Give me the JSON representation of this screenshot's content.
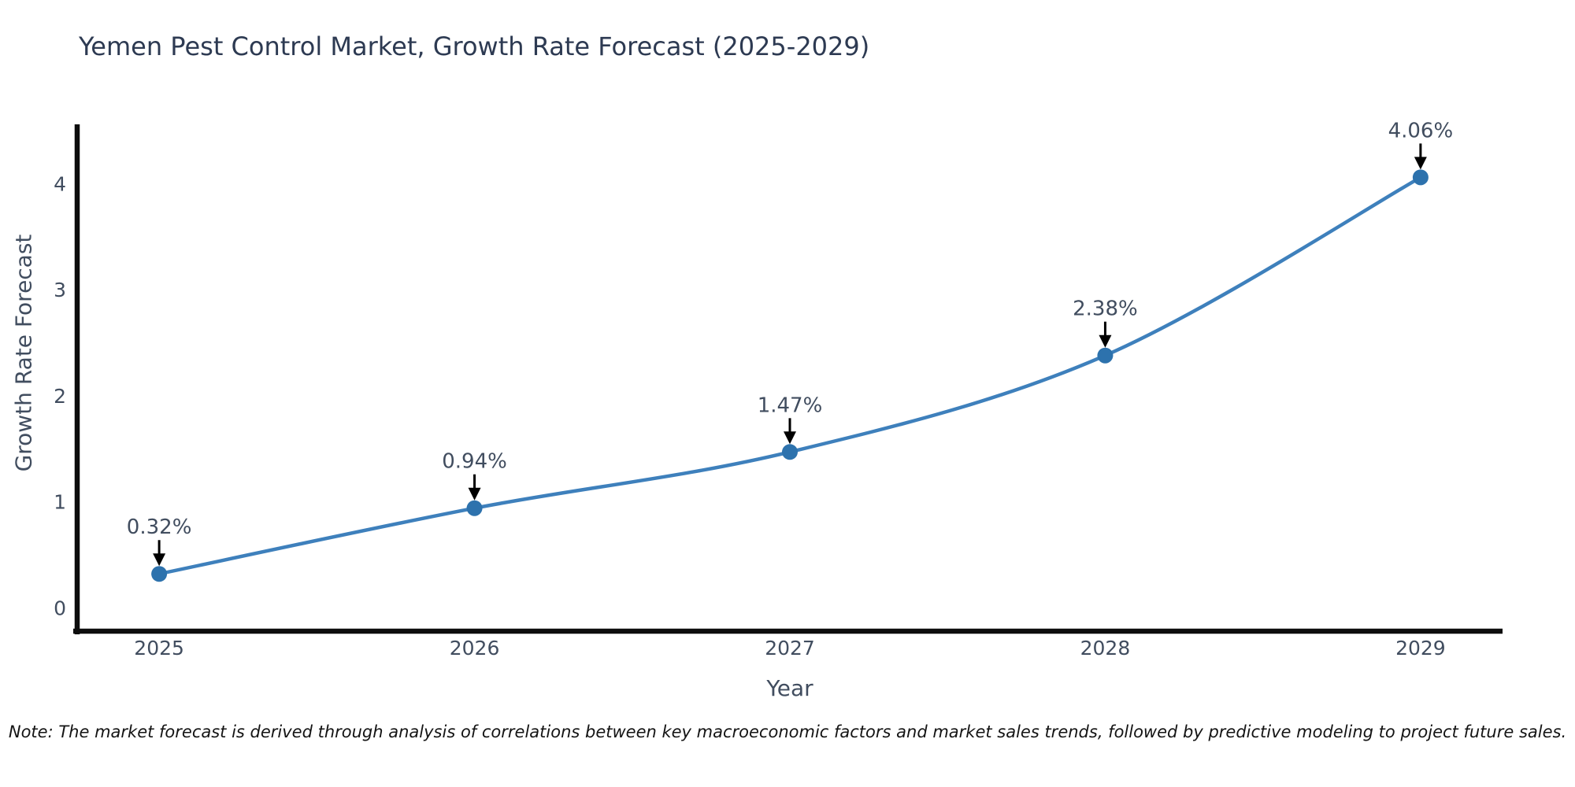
{
  "title": "Yemen Pest Control Market, Growth Rate Forecast (2025-2029)",
  "note": "Note: The market forecast is derived through analysis of correlations between key macroeconomic factors and market sales trends, followed by predictive modeling to project future sales.",
  "chart_data": {
    "type": "line",
    "title": "Yemen Pest Control Market, Growth Rate Forecast (2025-2029)",
    "xlabel": "Year",
    "ylabel": "Growth Rate Forecast",
    "categories": [
      2025,
      2026,
      2027,
      2028,
      2029
    ],
    "values": [
      0.32,
      0.94,
      1.47,
      2.38,
      4.06
    ],
    "point_labels": [
      "0.32%",
      "0.94%",
      "1.47%",
      "2.38%",
      "4.06%"
    ],
    "yticks": [
      0,
      1,
      2,
      3,
      4
    ],
    "ylim": [
      -0.22,
      4.56
    ],
    "xlim": [
      2024.74,
      2029.26
    ],
    "grid": false,
    "legend": null,
    "smooth": true,
    "annotation_arrows": true,
    "colors": {
      "line": "#3e80bc",
      "marker": "#2d72ad",
      "arrow": "#000000",
      "spine": "#0d0d0d",
      "title_text": "#2d3a52",
      "tick_text": "#414d5f",
      "annotation_text": "#414d5f",
      "note_text": "#141414",
      "background": "#ffffff"
    }
  }
}
